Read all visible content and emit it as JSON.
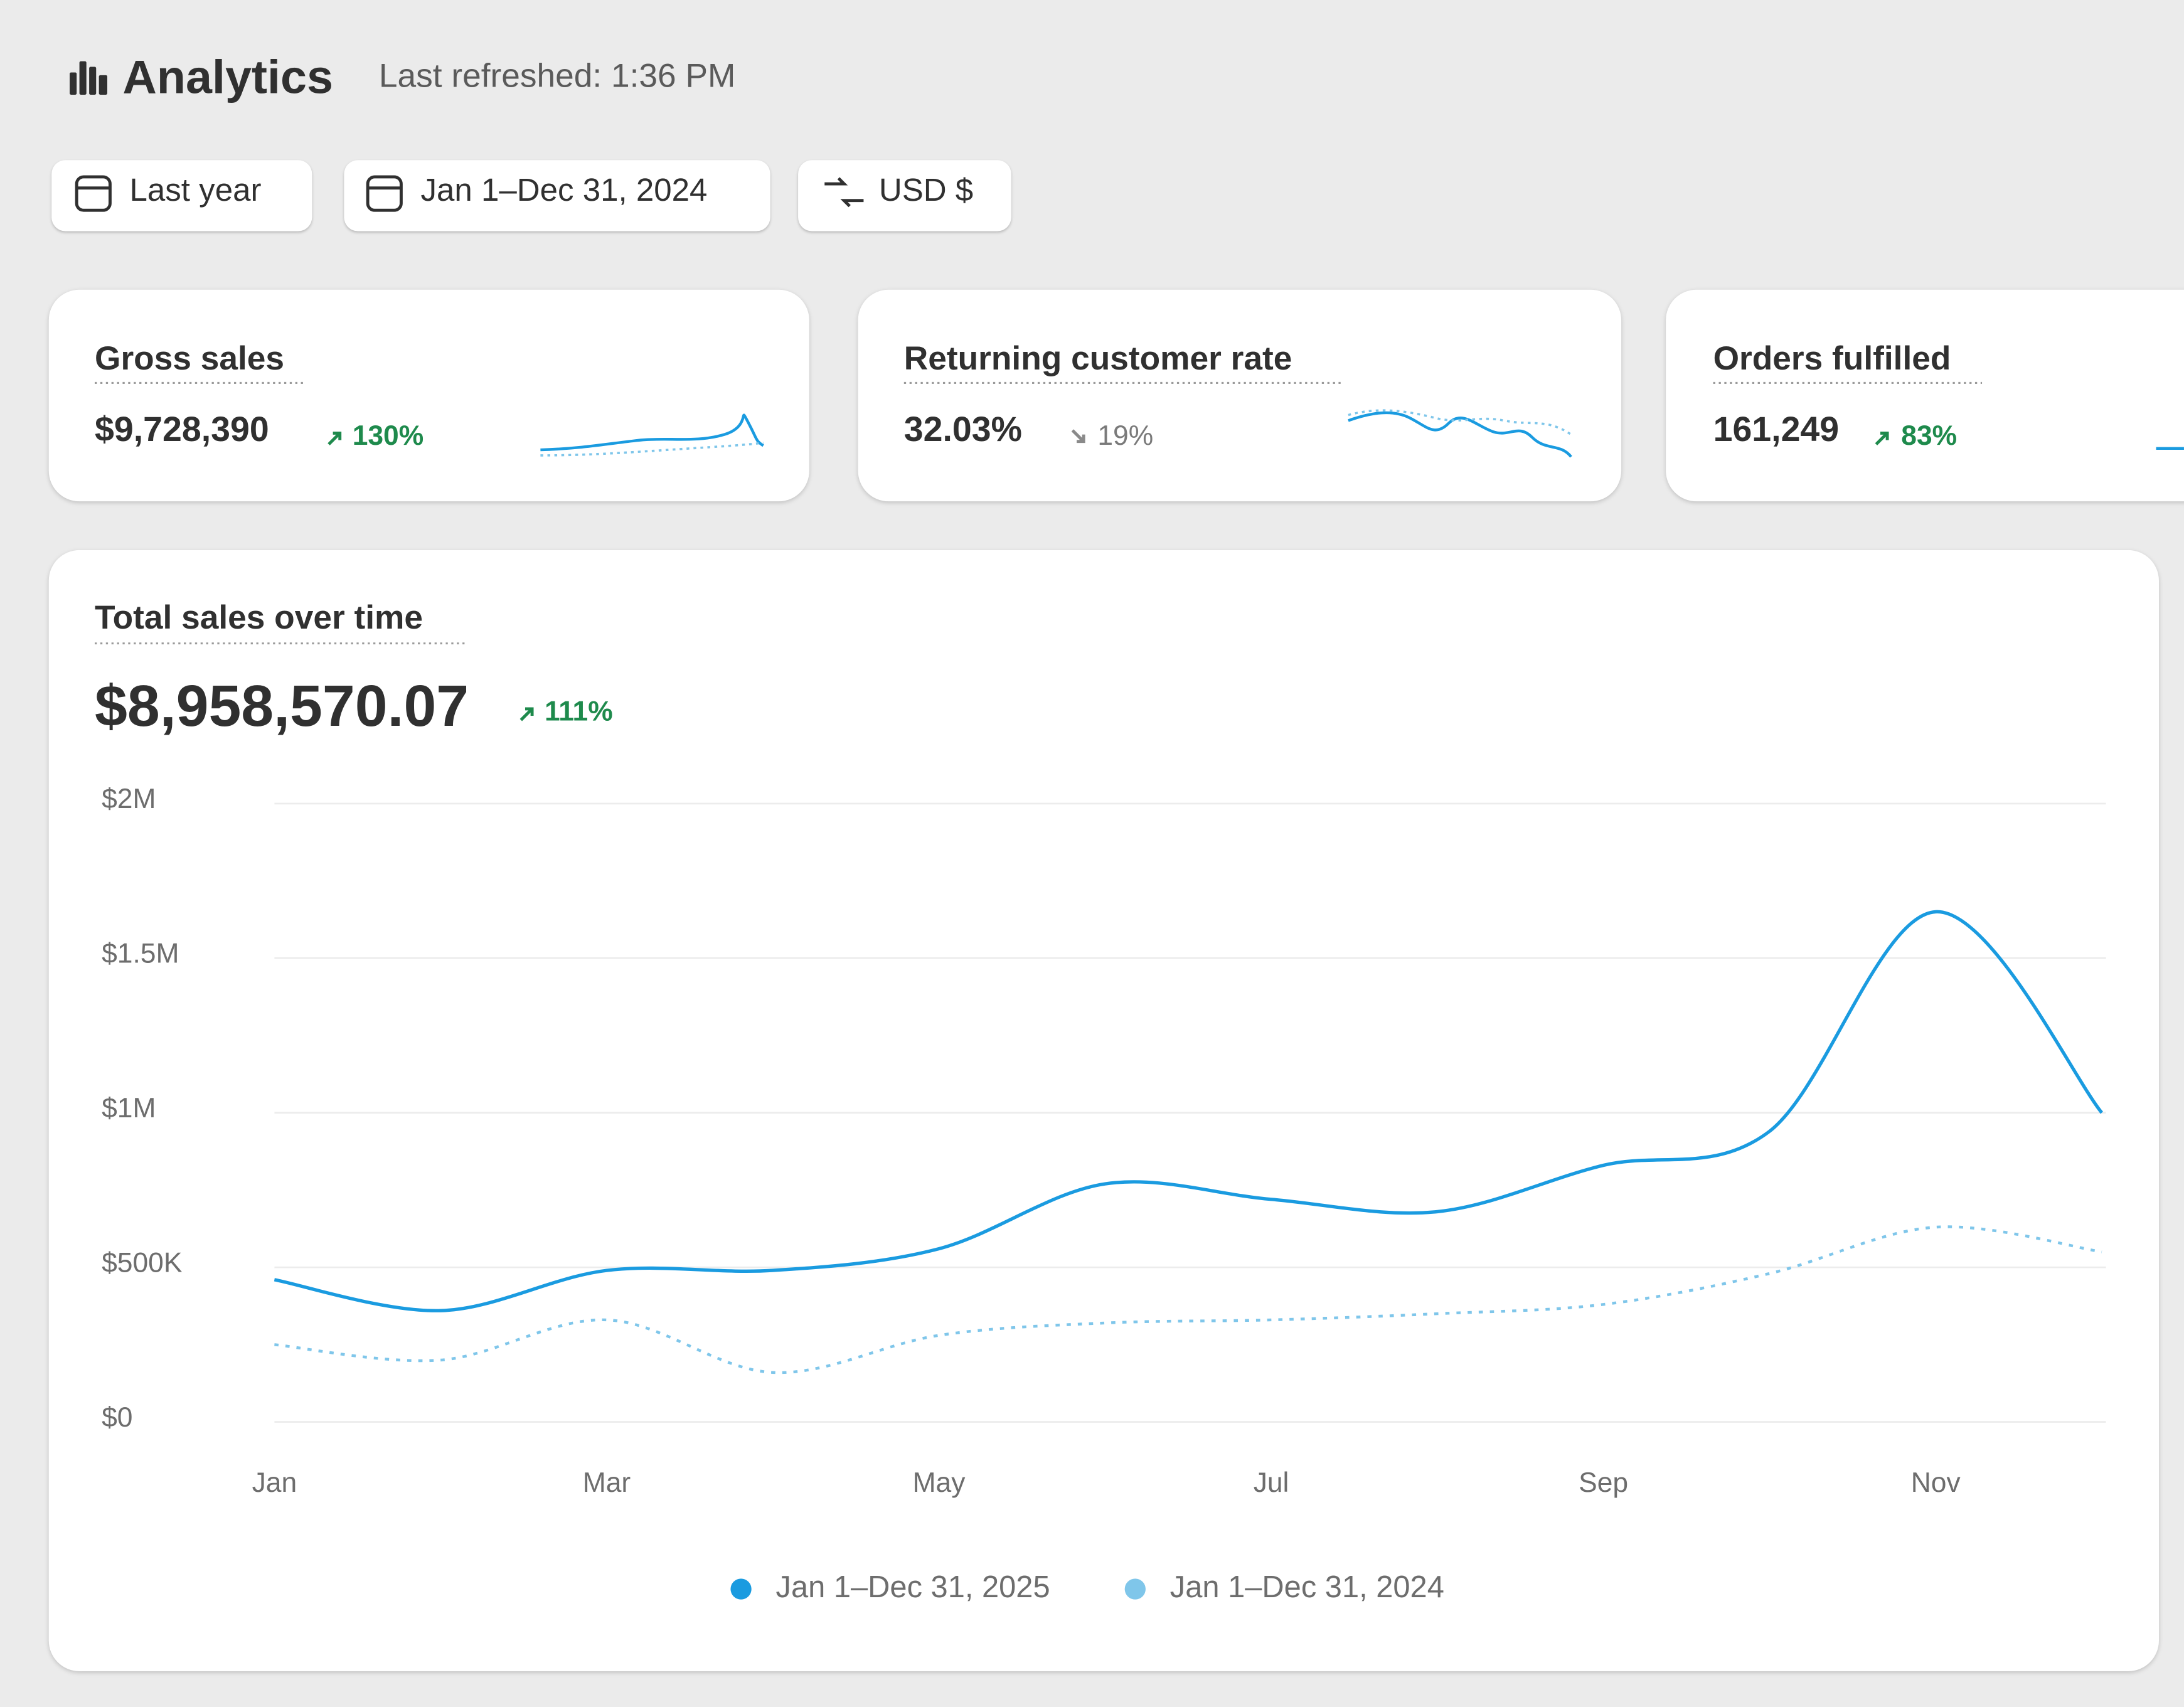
{
  "header": {
    "title": "Analytics",
    "last_refreshed": "Last refreshed: 1:36 PM"
  },
  "filters": [
    "Last year",
    "Jan 1–Dec 31, 2024",
    "USD $"
  ],
  "kpis": [
    {
      "title": "Gross sales",
      "value": "$9,728,390",
      "change": "130%"
    },
    {
      "title": "Returning customer rate",
      "value": "32.03%",
      "change": "19%"
    },
    {
      "title": "Orders fulfilled",
      "value": "161,249",
      "change": "83%"
    }
  ],
  "chart_data": {
    "type": "line",
    "title": "Total sales over time",
    "total": "$8,958,570.07",
    "change": "111%",
    "categories": [
      "Jan",
      null,
      "Mar",
      null,
      "May",
      null,
      "Jul",
      null,
      "Sep",
      null,
      "Nov",
      null
    ],
    "series": [
      {
        "name": "Jan 1–Dec 31, 2025",
        "color": "#1a9be0",
        "style": "solid",
        "values": [
          460000,
          360000,
          490000,
          490000,
          560000,
          770000,
          720000,
          680000,
          830000,
          940000,
          1650000,
          1000000
        ]
      },
      {
        "name": "Jan 1–Dec 31, 2024",
        "color": "#7fc6ea",
        "style": "dashed",
        "values": [
          250000,
          200000,
          330000,
          160000,
          280000,
          320000,
          330000,
          350000,
          380000,
          480000,
          630000,
          550000
        ]
      }
    ],
    "ylim": [
      0,
      2000000
    ],
    "yticks": [
      {
        "value": 0,
        "label": "$0"
      },
      {
        "value": 500000,
        "label": "$500K"
      },
      {
        "value": 1000000,
        "label": "$1M"
      },
      {
        "value": 1500000,
        "label": "$1.5M"
      },
      {
        "value": 2000000,
        "label": "$2M"
      }
    ],
    "grid": true
  }
}
